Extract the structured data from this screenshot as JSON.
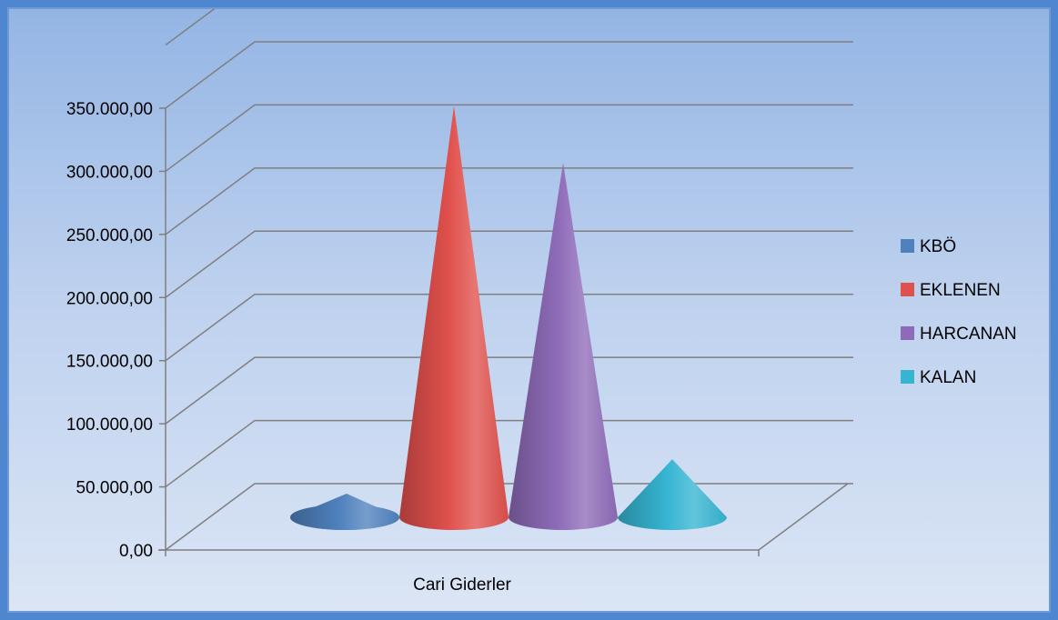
{
  "chart_data": {
    "type": "bar",
    "style": "3d-cone",
    "categories": [
      "Cari Giderler"
    ],
    "series": [
      {
        "name": "KBÖ",
        "values": [
          5000
        ],
        "color": "#4f81bd"
      },
      {
        "name": "EKLENEN",
        "values": [
          340000
        ],
        "color": "#e0504c"
      },
      {
        "name": "HARCANAN",
        "values": [
          295000
        ],
        "color": "#8e6bb8"
      },
      {
        "name": "KALAN",
        "values": [
          60000
        ],
        "color": "#36b5d2"
      }
    ],
    "ylim": [
      0,
      350000
    ],
    "ytick_labels": [
      "0,00",
      "50.000,00",
      "100.000,00",
      "150.000,00",
      "200.000,00",
      "250.000,00",
      "300.000,00",
      "350.000,00"
    ],
    "xlabel": "Cari Giderler",
    "legend_position": "right",
    "grid": true
  }
}
